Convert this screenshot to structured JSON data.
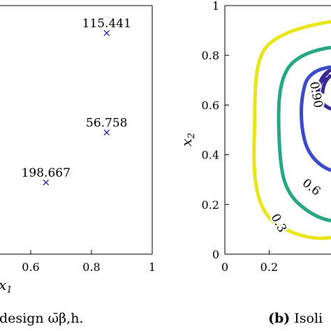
{
  "chart_data": [
    {
      "type": "scatter",
      "panel": "a",
      "xlim": [
        0,
        1
      ],
      "x_ticks": [
        "0.6",
        "0.8",
        "1"
      ],
      "xlabel_fragment": "x1",
      "points": [
        {
          "x": 0.85,
          "y": 0.89,
          "label": "115.441"
        },
        {
          "x": 0.85,
          "y": 0.49,
          "label": "56.758"
        },
        {
          "x": 0.65,
          "y": 0.29,
          "label": "198.667"
        }
      ],
      "marker": "×",
      "marker_color": "#1515b8",
      "caption": "design ω̄β,h."
    },
    {
      "type": "contour",
      "panel": "b",
      "xlim": [
        0,
        1
      ],
      "ylim": [
        0,
        1
      ],
      "x_ticks": [
        "0",
        "0.2"
      ],
      "y_ticks": [
        "0",
        "0.2",
        "0.4",
        "0.6",
        "0.8",
        "1"
      ],
      "ylabel": "x2",
      "level_labels": [
        "0.3",
        "0.6",
        "0.90"
      ],
      "level_colors": [
        "#e8e61a",
        "#27a684",
        "#3b4bc8",
        "#3a2a95"
      ],
      "caption_bold": "(b)",
      "caption_text": "Isoli"
    }
  ]
}
